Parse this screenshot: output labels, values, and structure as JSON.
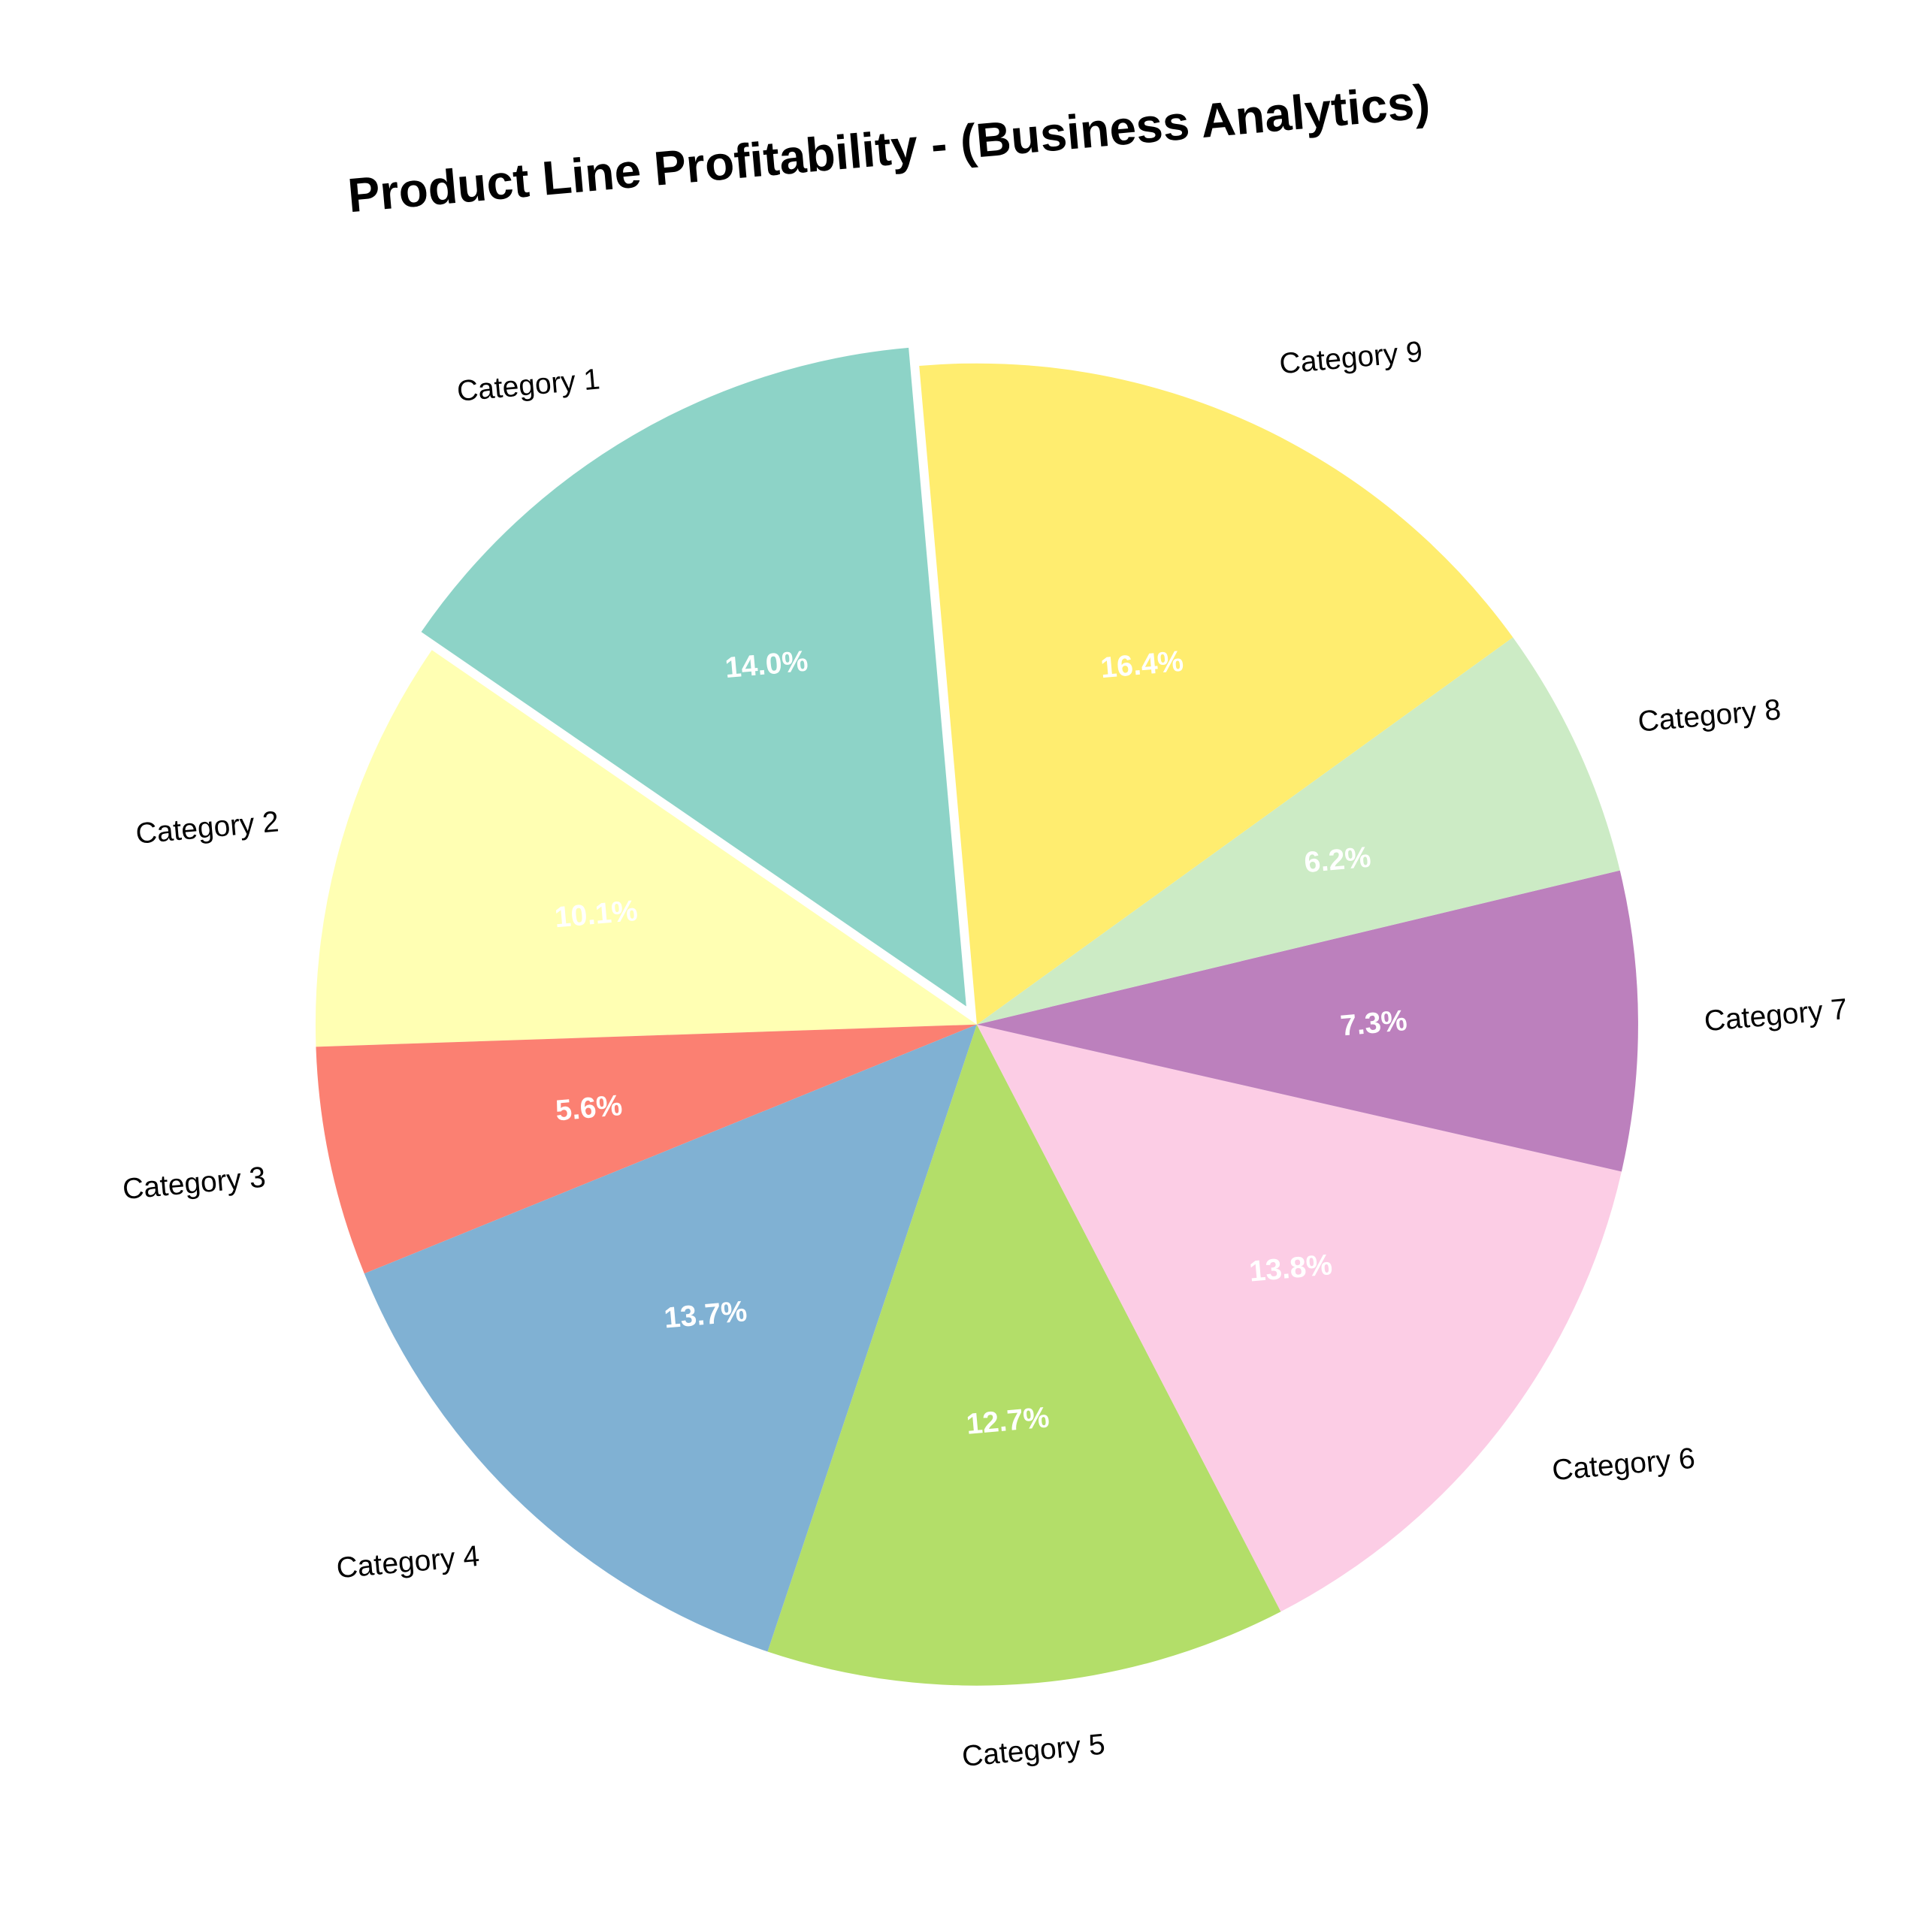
{
  "chart_data": {
    "type": "pie",
    "title": "Product Line Profitability - (Business Analytics)",
    "categories": [
      "Category 1",
      "Category 2",
      "Category 3",
      "Category 4",
      "Category 5",
      "Category 6",
      "Category 7",
      "Category 8",
      "Category 9"
    ],
    "values": [
      14.0,
      10.1,
      5.6,
      13.7,
      12.7,
      13.8,
      7.3,
      6.2,
      16.4
    ],
    "percent_labels": [
      "14.0%",
      "10.1%",
      "5.6%",
      "13.7%",
      "12.7%",
      "13.8%",
      "7.3%",
      "6.2%",
      "16.4%"
    ],
    "colors": [
      "#8dd3c7",
      "#ffffb3",
      "#fb8072",
      "#80b1d3",
      "#b3de69",
      "#fccde5",
      "#bc80bd",
      "#ccebc5",
      "#ffed6f"
    ],
    "exploded": [
      "Category 1"
    ],
    "start_angle": 90,
    "direction": "counterclockwise",
    "rotation_deg": -5,
    "legend": "none"
  }
}
